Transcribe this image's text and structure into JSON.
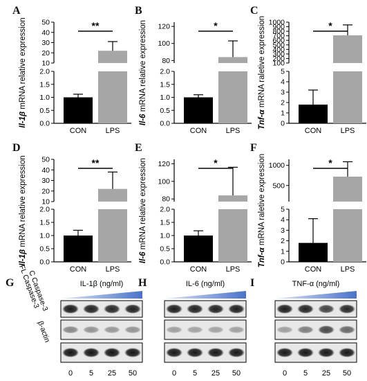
{
  "colors": {
    "con": "#000000",
    "lps": "#a6a6a6",
    "ramp": "#4a72c9",
    "band": "#2b2b2b",
    "blot_bg": "#e8e8e8"
  },
  "chart_data": [
    {
      "type": "bar",
      "panel": "A",
      "gene": "Il-1β",
      "ylabel_tail": " mRNA relative expression",
      "categories": [
        "CON",
        "LPS"
      ],
      "values": [
        1.0,
        22.0
      ],
      "errors": [
        0.12,
        9.0
      ],
      "broken_axis": {
        "lower": [
          0,
          2
        ],
        "upper": [
          10,
          50
        ]
      },
      "lower_ticks": [
        "0.0",
        "0.5",
        "1.0",
        "1.5",
        "2.0"
      ],
      "upper_ticks": [
        "10",
        "20",
        "30",
        "40",
        "50"
      ],
      "significance": "**"
    },
    {
      "type": "bar",
      "panel": "B",
      "gene": "Il-6",
      "ylabel_tail": " mRNA relative expression",
      "categories": [
        "CON",
        "LPS"
      ],
      "values": [
        1.0,
        84.0
      ],
      "errors": [
        0.1,
        19.0
      ],
      "broken_axis": {
        "lower": [
          0,
          2
        ],
        "upper": [
          77,
          125
        ]
      },
      "lower_ticks": [
        "0.0",
        "0.5",
        "1.0",
        "1.5",
        "2.0"
      ],
      "upper_ticks": [
        "80",
        "100",
        "120"
      ],
      "significance": "*"
    },
    {
      "type": "bar",
      "panel": "C",
      "gene": "Tnf-α",
      "ylabel_tail": " mRNA raletive expression",
      "categories": [
        "CON",
        "LPS"
      ],
      "values": [
        1.8,
        710.0
      ],
      "errors": [
        1.4,
        230.0
      ],
      "broken_axis": {
        "lower": [
          0,
          5
        ],
        "upper": [
          100,
          1000
        ]
      },
      "lower_ticks": [
        "0",
        "1",
        "2",
        "3",
        "4",
        "5"
      ],
      "upper_ticks": [
        "100",
        "200",
        "300",
        "400",
        "500",
        "600",
        "700",
        "800",
        "900",
        "1000"
      ],
      "significance": "*"
    },
    {
      "type": "bar",
      "panel": "D",
      "gene": "Il-1β",
      "ylabel_tail": " mRNA relative expression",
      "categories": [
        "CON",
        "LPS"
      ],
      "values": [
        1.0,
        22.0
      ],
      "errors": [
        0.2,
        16.0
      ],
      "broken_axis": {
        "lower": [
          0,
          2
        ],
        "upper": [
          10,
          50
        ]
      },
      "lower_ticks": [
        "0.0",
        "0.5",
        "1.0",
        "1.5",
        "2.0"
      ],
      "upper_ticks": [
        "10",
        "20",
        "30",
        "40",
        "50"
      ],
      "significance": "**"
    },
    {
      "type": "bar",
      "panel": "E",
      "gene": "Il-6",
      "ylabel_tail": " mRNA relative expression",
      "categories": [
        "CON",
        "LPS"
      ],
      "values": [
        1.0,
        84.0
      ],
      "errors": [
        0.18,
        32.0
      ],
      "broken_axis": {
        "lower": [
          0,
          2
        ],
        "upper": [
          77,
          125
        ]
      },
      "lower_ticks": [
        "0.0",
        "0.5",
        "1.0",
        "1.5",
        "2.0"
      ],
      "upper_ticks": [
        "80",
        "100",
        "120"
      ],
      "significance": "*"
    },
    {
      "type": "bar",
      "panel": "F",
      "gene": "Tnf-α",
      "ylabel_tail": " mRNA raletive expression",
      "categories": [
        "CON",
        "LPS"
      ],
      "values": [
        1.8,
        720.0
      ],
      "errors": [
        2.3,
        370.0
      ],
      "broken_axis": {
        "lower": [
          0,
          5
        ],
        "upper": [
          100,
          1150
        ]
      },
      "lower_ticks": [
        "0",
        "1",
        "2",
        "3",
        "4",
        "5"
      ],
      "upper_ticks": [
        "500",
        "1000"
      ],
      "significance": "*"
    }
  ],
  "blots": [
    {
      "panel": "G",
      "title": "IL-1β (ng/ml)",
      "doses": [
        "0",
        "5",
        "25",
        "50"
      ],
      "rows": [
        {
          "label": "FL Caspase-3",
          "intensities": [
            0.95,
            0.92,
            0.9,
            0.93
          ]
        },
        {
          "label": "C Caspase-3",
          "intensities": [
            0.45,
            0.4,
            0.38,
            0.4
          ]
        },
        {
          "label": "β-actin",
          "intensities": [
            0.98,
            0.98,
            0.98,
            0.98
          ]
        }
      ]
    },
    {
      "panel": "H",
      "title": "IL-6 (ng/ml)",
      "doses": [
        "0",
        "5",
        "25",
        "50"
      ],
      "rows": [
        {
          "label": "",
          "intensities": [
            0.95,
            0.93,
            0.93,
            0.94
          ]
        },
        {
          "label": "",
          "intensities": [
            0.35,
            0.33,
            0.33,
            0.34
          ]
        },
        {
          "label": "",
          "intensities": [
            0.97,
            0.97,
            0.97,
            0.97
          ]
        }
      ]
    },
    {
      "panel": "I",
      "title": "TNF-α (ng/ml)",
      "doses": [
        "0",
        "5",
        "25",
        "50"
      ],
      "rows": [
        {
          "label": "",
          "intensities": [
            0.95,
            0.92,
            0.78,
            0.9
          ]
        },
        {
          "label": "",
          "intensities": [
            0.35,
            0.5,
            0.75,
            0.6
          ]
        },
        {
          "label": "",
          "intensities": [
            0.97,
            0.97,
            0.97,
            0.97
          ]
        }
      ]
    }
  ]
}
